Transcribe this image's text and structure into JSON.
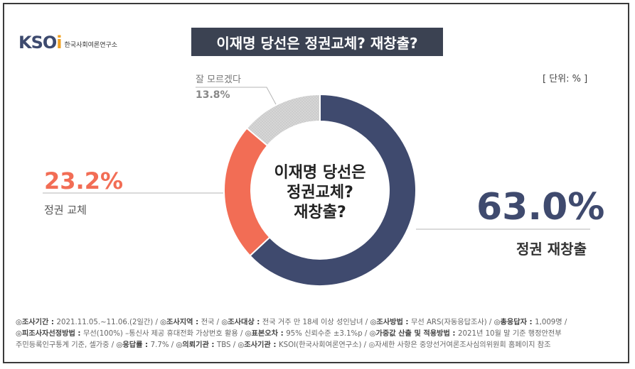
{
  "logo": {
    "mark_main": "KSO",
    "mark_dot": "i",
    "org": "한국사회여론연구소"
  },
  "title": "이재명 당선은 정권교체? 재창출?",
  "unit": "[ 단위: % ]",
  "colors": {
    "regime_change": "#f26d55",
    "continuity": "#3f4a6e",
    "dont_know": "#cccccc"
  },
  "chart_data": {
    "type": "pie",
    "donut": true,
    "center_text": [
      "이재명 당선은",
      "정권교체?",
      "재창출?"
    ],
    "slices": [
      {
        "label": "정권 재창출",
        "value": 63.0,
        "display": "63.0%"
      },
      {
        "label": "정권 교체",
        "value": 23.2,
        "display": "23.2%"
      },
      {
        "label": "잘 모르겠다",
        "value": 13.8,
        "display": "13.8%"
      }
    ]
  },
  "footer": {
    "line1": [
      {
        "k": "◎조사기간 : ",
        "v": "2021.11.05.~11.06.(2일간)  / "
      },
      {
        "k": "◎조사지역 : ",
        "v": "전국 / "
      },
      {
        "k": "◎조사대상 : ",
        "v": "전국 거주 만 18세 이상 성인남녀 / "
      },
      {
        "k": "◎조사방법 : ",
        "v": "무선 ARS(자동응답조사) / "
      },
      {
        "k": "◎총응답자 : ",
        "v": "1,009명 /"
      }
    ],
    "line2": [
      {
        "k": "◎피조사자선정방법 : ",
        "v": "무선(100%) –통신사 제공 휴대전화 가상번호 활용 / "
      },
      {
        "k": "◎표본오차 : ",
        "v": "95% 신뢰수준 ±3.1%p / "
      },
      {
        "k": "◎가중값 산출 및 적용방법 : ",
        "v": "2021년 10월 말 기준 행정안전부"
      }
    ],
    "line3": [
      {
        "k": "",
        "v": "주민등록인구통계 기준, 셀가중 / "
      },
      {
        "k": "◎응답률 : ",
        "v": "7.7% / "
      },
      {
        "k": "◎의뢰기관 : ",
        "v": "TBS / "
      },
      {
        "k": "◎조사기관 : ",
        "v": "KSOI(한국사회여론연구소) / "
      },
      {
        "k": "",
        "v": "◎자세한 사항은 중앙선거여론조사심의위원회 홈페이지 참조"
      }
    ]
  }
}
